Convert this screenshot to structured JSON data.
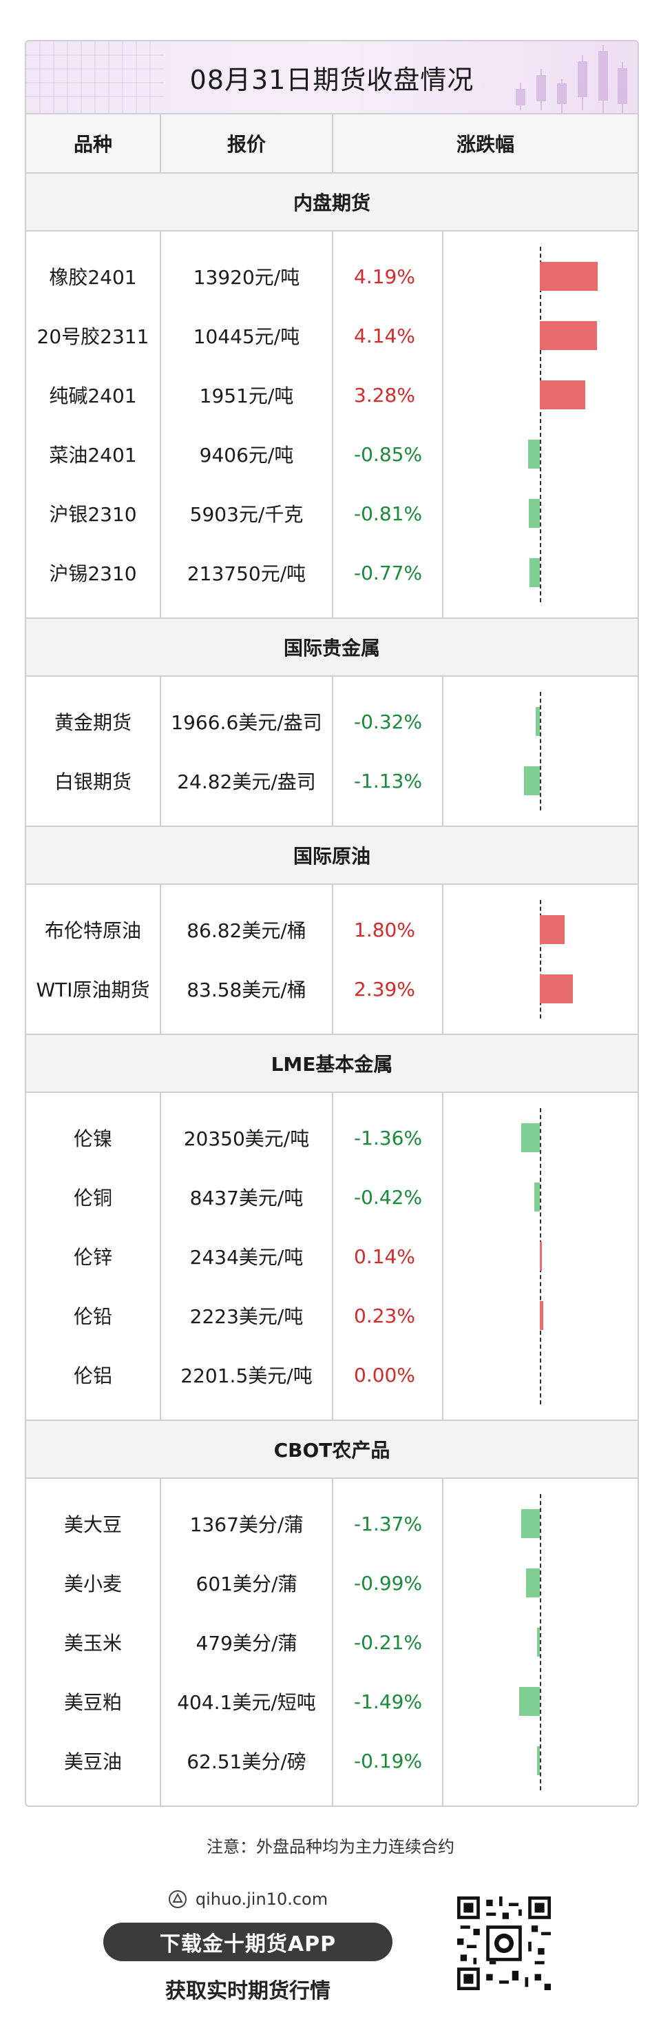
{
  "title": "08月31日期货收盘情况",
  "headers": {
    "variety": "品种",
    "price": "报价",
    "change": "涨跌幅"
  },
  "colors": {
    "up": "#e86b6b",
    "down": "#7fcf92",
    "up_text": "#d42a2a",
    "down_text": "#1b8a3a"
  },
  "bar_scale_max_pct": 4.19,
  "sections": [
    {
      "name": "内盘期货",
      "rows": [
        {
          "variety": "橡胶2401",
          "price": "13920元/吨",
          "change": "4.19%",
          "pct": 4.19
        },
        {
          "variety": "20号胶2311",
          "price": "10445元/吨",
          "change": "4.14%",
          "pct": 4.14
        },
        {
          "variety": "纯碱2401",
          "price": "1951元/吨",
          "change": "3.28%",
          "pct": 3.28
        },
        {
          "variety": "菜油2401",
          "price": "9406元/吨",
          "change": "-0.85%",
          "pct": -0.85
        },
        {
          "variety": "沪银2310",
          "price": "5903元/千克",
          "change": "-0.81%",
          "pct": -0.81
        },
        {
          "variety": "沪锡2310",
          "price": "213750元/吨",
          "change": "-0.77%",
          "pct": -0.77
        }
      ]
    },
    {
      "name": "国际贵金属",
      "rows": [
        {
          "variety": "黄金期货",
          "price": "1966.6美元/盎司",
          "change": "-0.32%",
          "pct": -0.32
        },
        {
          "variety": "白银期货",
          "price": "24.82美元/盎司",
          "change": "-1.13%",
          "pct": -1.13
        }
      ]
    },
    {
      "name": "国际原油",
      "rows": [
        {
          "variety": "布伦特原油",
          "price": "86.82美元/桶",
          "change": "1.80%",
          "pct": 1.8
        },
        {
          "variety": "WTI原油期货",
          "price": "83.58美元/桶",
          "change": "2.39%",
          "pct": 2.39
        }
      ]
    },
    {
      "name": "LME基本金属",
      "rows": [
        {
          "variety": "伦镍",
          "price": "20350美元/吨",
          "change": "-1.36%",
          "pct": -1.36
        },
        {
          "variety": "伦铜",
          "price": "8437美元/吨",
          "change": "-0.42%",
          "pct": -0.42
        },
        {
          "variety": "伦锌",
          "price": "2434美元/吨",
          "change": "0.14%",
          "pct": 0.14
        },
        {
          "variety": "伦铅",
          "price": "2223美元/吨",
          "change": "0.23%",
          "pct": 0.23
        },
        {
          "variety": "伦铝",
          "price": "2201.5美元/吨",
          "change": "0.00%",
          "pct": 0.0
        }
      ]
    },
    {
      "name": "CBOT农产品",
      "rows": [
        {
          "variety": "美大豆",
          "price": "1367美分/蒲",
          "change": "-1.37%",
          "pct": -1.37
        },
        {
          "variety": "美小麦",
          "price": "601美分/蒲",
          "change": "-0.99%",
          "pct": -0.99
        },
        {
          "variety": "美玉米",
          "price": "479美分/蒲",
          "change": "-0.21%",
          "pct": -0.21
        },
        {
          "variety": "美豆粕",
          "price": "404.1美元/短吨",
          "change": "-1.49%",
          "pct": -1.49
        },
        {
          "variety": "美豆油",
          "price": "62.51美分/磅",
          "change": "-0.19%",
          "pct": -0.19
        }
      ]
    }
  ],
  "note": "注意：外盘品种均为主力连续合约",
  "footer": {
    "site": "qihuo.jin10.com",
    "app_button": "下载金十期货APP",
    "slogan": "获取实时期货行情",
    "qr_icon": "qr-code-icon"
  }
}
